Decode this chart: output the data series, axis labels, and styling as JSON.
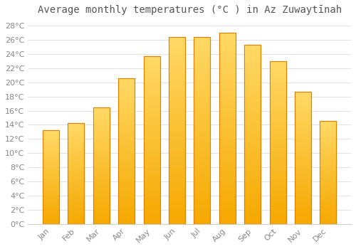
{
  "title": "Average monthly temperatures (°C ) in Az Zuwaytīnah",
  "months": [
    "Jan",
    "Feb",
    "Mar",
    "Apr",
    "May",
    "Jun",
    "Jul",
    "Aug",
    "Sep",
    "Oct",
    "Nov",
    "Dec"
  ],
  "values": [
    13.2,
    14.3,
    16.5,
    20.6,
    23.7,
    26.4,
    26.4,
    27.0,
    25.3,
    23.0,
    18.7,
    14.6
  ],
  "bar_color_dark": "#F5A800",
  "bar_color_light": "#FFD966",
  "bar_edge_color": "#E08000",
  "ylim": [
    0,
    29
  ],
  "ytick_step": 2,
  "background_color": "#ffffff",
  "grid_color": "#dddddd",
  "title_fontsize": 10,
  "tick_fontsize": 8,
  "tick_label_color": "#888888",
  "title_color": "#555555"
}
